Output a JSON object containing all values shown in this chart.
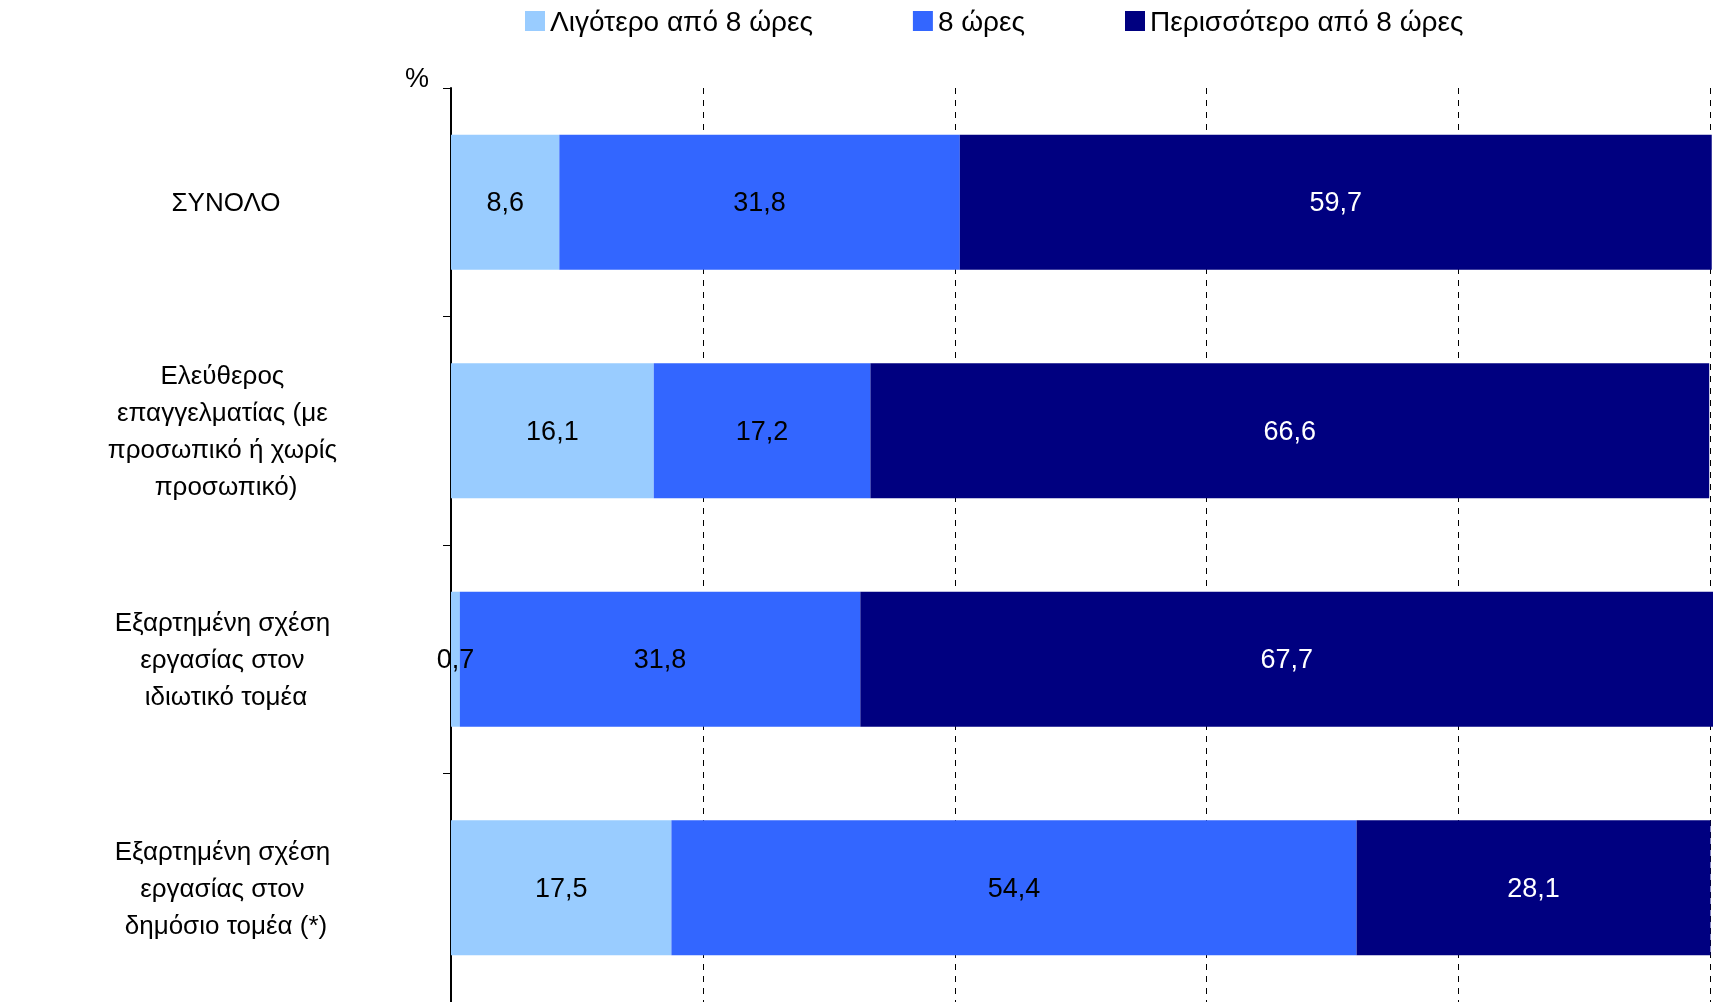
{
  "chart_data": {
    "type": "bar",
    "orientation": "horizontal",
    "stacked": true,
    "xlabel": "%",
    "categories": [
      "ΣΥΝΟΛΟ",
      "Ελεύθερος επαγγελματίας (με προσωπικό ή χωρίς προσωπικό)",
      "Εξαρτημένη σχέση εργασίας στον ιδιωτικό τομέα",
      "Εξαρτημένη σχέση εργασίας στον δημόσιο τομέα (*)"
    ],
    "series": [
      {
        "name": "Λιγότερο από 8 ώρες",
        "color": "#99ccff",
        "values": [
          8.6,
          16.1,
          0.7,
          17.5
        ],
        "value_labels": [
          "8,6",
          "16,1",
          "0,7",
          "17,5"
        ]
      },
      {
        "name": "8 ώρες",
        "color": "#3366ff",
        "values": [
          31.8,
          17.2,
          31.8,
          54.4
        ],
        "value_labels": [
          "31,8",
          "17,2",
          "31,8",
          "54,4"
        ]
      },
      {
        "name": "Περισσότερο από 8 ώρες",
        "color": "#000080",
        "values": [
          59.7,
          66.6,
          67.7,
          28.1
        ],
        "value_labels": [
          "59,7",
          "66,6",
          "67,7",
          "28,1"
        ]
      }
    ],
    "grid": "x",
    "legend": "top",
    "tick_labels": "y"
  }
}
